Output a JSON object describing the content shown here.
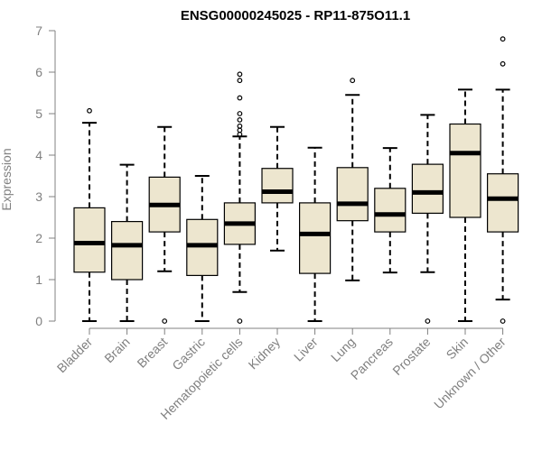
{
  "chart_data": {
    "type": "boxplot",
    "title": "ENSG00000245025 - RP11-875O11.1",
    "xlabel": "",
    "ylabel": "Expression",
    "ylim": [
      0,
      7
    ],
    "yticks": [
      0,
      1,
      2,
      3,
      4,
      5,
      6,
      7
    ],
    "colors": {
      "box_fill": "#ede6cf",
      "stroke": "#000000",
      "axis": "#808080"
    },
    "categories": [
      "Bladder",
      "Brain",
      "Breast",
      "Gastric",
      "Hematopoietic cells",
      "Kidney",
      "Liver",
      "Lung",
      "Pancreas",
      "Prostate",
      "Skin",
      "Unknown / Other"
    ],
    "boxes": [
      {
        "category": "Bladder",
        "whisker_low": 0.0,
        "q1": 1.18,
        "median": 1.88,
        "q3": 2.73,
        "whisker_high": 4.78,
        "outliers": [
          5.07
        ]
      },
      {
        "category": "Brain",
        "whisker_low": 0.0,
        "q1": 1.0,
        "median": 1.83,
        "q3": 2.4,
        "whisker_high": 3.77,
        "outliers": []
      },
      {
        "category": "Breast",
        "whisker_low": 1.2,
        "q1": 2.15,
        "median": 2.8,
        "q3": 3.47,
        "whisker_high": 4.68,
        "outliers": [
          0.0
        ]
      },
      {
        "category": "Gastric",
        "whisker_low": 0.0,
        "q1": 1.1,
        "median": 1.83,
        "q3": 2.45,
        "whisker_high": 3.5,
        "outliers": []
      },
      {
        "category": "Hematopoietic cells",
        "whisker_low": 0.7,
        "q1": 1.85,
        "median": 2.35,
        "q3": 2.85,
        "whisker_high": 4.45,
        "outliers": [
          0.0,
          4.5,
          4.6,
          4.7,
          4.85,
          5.0,
          5.38,
          5.8,
          5.95
        ]
      },
      {
        "category": "Kidney",
        "whisker_low": 1.7,
        "q1": 2.85,
        "median": 3.12,
        "q3": 3.68,
        "whisker_high": 4.68,
        "outliers": []
      },
      {
        "category": "Liver",
        "whisker_low": 0.0,
        "q1": 1.15,
        "median": 2.1,
        "q3": 2.85,
        "whisker_high": 4.18,
        "outliers": []
      },
      {
        "category": "Lung",
        "whisker_low": 0.98,
        "q1": 2.42,
        "median": 2.83,
        "q3": 3.7,
        "whisker_high": 5.45,
        "outliers": [
          5.8
        ]
      },
      {
        "category": "Pancreas",
        "whisker_low": 1.17,
        "q1": 2.15,
        "median": 2.57,
        "q3": 3.2,
        "whisker_high": 4.17,
        "outliers": []
      },
      {
        "category": "Prostate",
        "whisker_low": 1.18,
        "q1": 2.6,
        "median": 3.1,
        "q3": 3.78,
        "whisker_high": 4.97,
        "outliers": [
          0.0
        ]
      },
      {
        "category": "Skin",
        "whisker_low": 0.0,
        "q1": 2.5,
        "median": 4.05,
        "q3": 4.75,
        "whisker_high": 5.58,
        "outliers": []
      },
      {
        "category": "Unknown / Other",
        "whisker_low": 0.52,
        "q1": 2.15,
        "median": 2.95,
        "q3": 3.55,
        "whisker_high": 5.58,
        "outliers": [
          0.0,
          6.2,
          6.8
        ]
      }
    ]
  }
}
